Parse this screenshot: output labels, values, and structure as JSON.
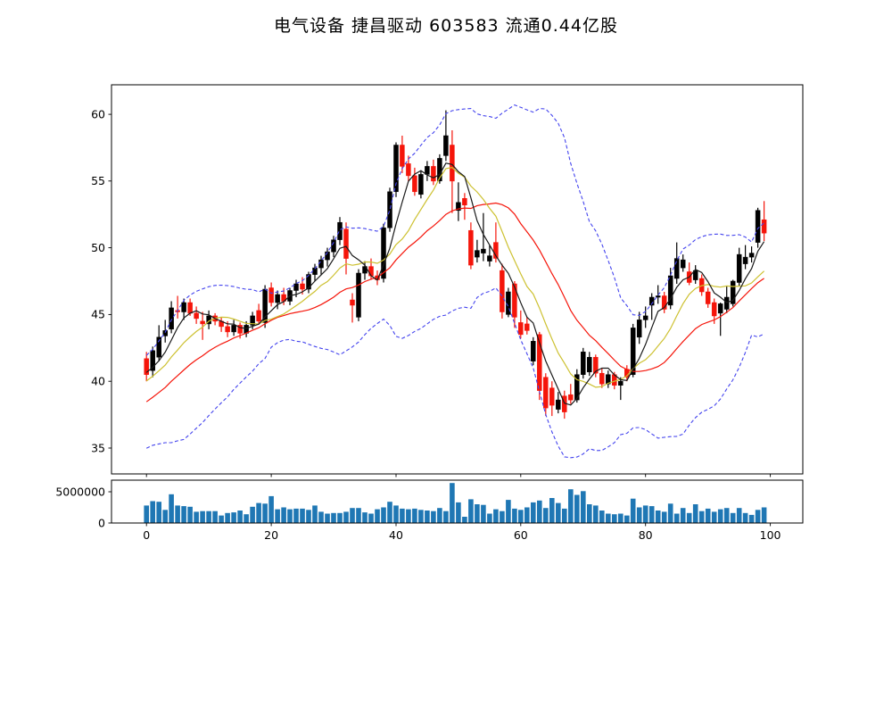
{
  "title": "电气设备 捷昌驱动 603583 流通0.44亿股",
  "chart_data": {
    "type": "candlestick",
    "title": "电气设备 捷昌驱动 603583 流通0.44亿股",
    "panels": [
      "price",
      "volume"
    ],
    "xlim": [
      -5.6,
      105.2
    ],
    "main_ylim": [
      33.06,
      62.21
    ],
    "vol_ylim": [
      0,
      6860000
    ],
    "x_ticks": [
      0,
      20,
      40,
      60,
      80,
      100
    ],
    "x_tick_labels": [
      "0",
      "20",
      "40",
      "60",
      "80",
      "100"
    ],
    "main_y_ticks": [
      35,
      40,
      45,
      50,
      55,
      60
    ],
    "main_y_tick_labels": [
      "35",
      "40",
      "45",
      "50",
      "55",
      "60"
    ],
    "vol_y_ticks": [
      0,
      5000000
    ],
    "vol_y_tick_labels": [
      "0",
      "5000000"
    ],
    "grid": false,
    "legend": false,
    "colors": {
      "up_candle": "#000000",
      "down_candle": "#f5150a",
      "volume_bar": "#1f77b4",
      "ma5_line": "#1a1a1a",
      "ma10_line": "#cdc131",
      "ma20_line": "#f5150a",
      "bollinger_band": "#4444ee",
      "axis": "#000000",
      "background": "#ffffff"
    },
    "indicators": {
      "ma_periods": [
        5,
        10,
        20
      ],
      "bollinger": {
        "period": 20,
        "mult": 2
      },
      "seed_closes_prehistory": [
        35.6,
        36.0,
        36.4,
        36.2,
        36.8,
        37.3,
        37.0,
        37.6,
        38.2,
        38.0,
        38.7,
        39.2,
        39.6,
        39.4,
        40.0,
        40.4,
        40.8,
        40.6,
        41.0
      ]
    },
    "ohlc": [
      [
        41.7,
        42.2,
        40.0,
        40.5
      ],
      [
        40.8,
        42.6,
        40.3,
        42.3
      ],
      [
        41.8,
        44.2,
        41.5,
        43.3
      ],
      [
        43.4,
        44.6,
        42.9,
        43.8
      ],
      [
        43.9,
        46.0,
        43.6,
        45.5
      ],
      [
        45.3,
        46.4,
        44.7,
        45.2
      ],
      [
        45.2,
        46.2,
        44.6,
        45.9
      ],
      [
        45.9,
        46.2,
        44.9,
        45.1
      ],
      [
        45.1,
        45.6,
        44.3,
        44.7
      ],
      [
        44.5,
        45.2,
        43.1,
        44.3
      ],
      [
        44.3,
        45.3,
        43.9,
        44.9
      ],
      [
        44.9,
        45.1,
        44.2,
        44.5
      ],
      [
        44.5,
        44.8,
        43.7,
        44.1
      ],
      [
        44.1,
        44.5,
        43.3,
        43.7
      ],
      [
        43.7,
        44.6,
        43.4,
        44.2
      ],
      [
        44.2,
        44.4,
        43.2,
        43.6
      ],
      [
        43.6,
        44.5,
        43.3,
        44.2
      ],
      [
        44.2,
        45.2,
        43.9,
        44.9
      ],
      [
        45.3,
        45.8,
        44.3,
        44.5
      ],
      [
        44.4,
        47.2,
        44.0,
        46.9
      ],
      [
        47.0,
        47.4,
        45.6,
        45.9
      ],
      [
        45.9,
        46.8,
        45.4,
        46.5
      ],
      [
        46.5,
        47.0,
        45.7,
        46.0
      ],
      [
        46.0,
        47.0,
        45.7,
        46.8
      ],
      [
        46.8,
        47.6,
        46.3,
        47.3
      ],
      [
        47.3,
        47.8,
        46.5,
        46.9
      ],
      [
        46.9,
        48.2,
        46.6,
        48.0
      ],
      [
        48.0,
        48.8,
        47.5,
        48.5
      ],
      [
        48.5,
        49.4,
        48.0,
        49.1
      ],
      [
        49.1,
        50.0,
        48.6,
        49.7
      ],
      [
        49.7,
        50.9,
        49.3,
        50.6
      ],
      [
        50.6,
        52.3,
        50.2,
        51.9
      ],
      [
        51.4,
        51.9,
        48.0,
        49.2
      ],
      [
        46.1,
        46.6,
        44.4,
        45.7
      ],
      [
        44.8,
        48.4,
        44.5,
        48.1
      ],
      [
        48.1,
        49.0,
        47.6,
        48.6
      ],
      [
        48.6,
        49.2,
        47.6,
        47.9
      ],
      [
        47.9,
        48.3,
        47.2,
        47.6
      ],
      [
        47.7,
        51.8,
        47.4,
        51.5
      ],
      [
        51.5,
        54.5,
        51.2,
        54.2
      ],
      [
        54.2,
        57.9,
        53.8,
        57.7
      ],
      [
        57.7,
        58.4,
        55.6,
        56.1
      ],
      [
        56.3,
        56.9,
        55.0,
        55.4
      ],
      [
        55.4,
        56.0,
        53.9,
        54.2
      ],
      [
        54.0,
        55.8,
        53.7,
        55.5
      ],
      [
        55.5,
        56.5,
        55.0,
        56.1
      ],
      [
        56.1,
        56.6,
        54.7,
        55.0
      ],
      [
        55.0,
        57.0,
        54.8,
        56.7
      ],
      [
        56.9,
        60.3,
        56.5,
        58.4
      ],
      [
        57.7,
        58.8,
        52.6,
        55.0
      ],
      [
        52.8,
        54.9,
        52.0,
        53.4
      ],
      [
        53.7,
        54.1,
        52.1,
        53.2
      ],
      [
        51.3,
        51.9,
        48.4,
        48.7
      ],
      [
        49.3,
        50.6,
        48.9,
        49.8
      ],
      [
        49.6,
        52.6,
        49.0,
        49.9
      ],
      [
        49.0,
        50.2,
        48.6,
        49.4
      ],
      [
        50.4,
        51.9,
        48.9,
        49.2
      ],
      [
        48.3,
        48.8,
        44.7,
        45.2
      ],
      [
        45.0,
        47.0,
        44.8,
        46.7
      ],
      [
        47.3,
        47.5,
        44.0,
        44.8
      ],
      [
        44.4,
        45.3,
        43.2,
        43.5
      ],
      [
        44.3,
        44.8,
        43.5,
        43.8
      ],
      [
        41.5,
        43.3,
        41.2,
        43.0
      ],
      [
        43.5,
        43.7,
        38.6,
        39.3
      ],
      [
        40.3,
        40.6,
        37.4,
        38.0
      ],
      [
        39.5,
        40.0,
        37.4,
        38.2
      ],
      [
        37.9,
        39.2,
        37.6,
        38.6
      ],
      [
        38.9,
        39.3,
        37.2,
        37.7
      ],
      [
        39.0,
        39.8,
        38.3,
        38.6
      ],
      [
        38.6,
        40.9,
        38.4,
        40.5
      ],
      [
        40.5,
        42.5,
        40.2,
        42.2
      ],
      [
        40.7,
        42.2,
        40.4,
        41.8
      ],
      [
        41.8,
        42.0,
        40.3,
        40.6
      ],
      [
        40.6,
        41.0,
        39.5,
        39.8
      ],
      [
        39.8,
        40.8,
        39.5,
        40.5
      ],
      [
        40.5,
        40.7,
        39.4,
        39.7
      ],
      [
        39.7,
        40.3,
        38.6,
        40.0
      ],
      [
        40.9,
        41.2,
        40.0,
        40.3
      ],
      [
        40.5,
        44.3,
        40.3,
        44.0
      ],
      [
        43.3,
        45.2,
        42.8,
        44.6
      ],
      [
        44.6,
        45.6,
        44.0,
        44.9
      ],
      [
        45.7,
        46.6,
        44.6,
        46.3
      ],
      [
        46.3,
        47.2,
        45.8,
        46.4
      ],
      [
        46.4,
        46.7,
        45.1,
        45.4
      ],
      [
        45.7,
        48.5,
        45.4,
        47.9
      ],
      [
        47.7,
        50.4,
        47.3,
        49.2
      ],
      [
        48.5,
        49.5,
        48.2,
        49.1
      ],
      [
        48.2,
        48.9,
        47.2,
        47.4
      ],
      [
        47.6,
        48.7,
        47.3,
        48.3
      ],
      [
        47.7,
        48.0,
        46.4,
        46.7
      ],
      [
        46.7,
        47.0,
        45.5,
        45.8
      ],
      [
        45.9,
        46.2,
        44.3,
        44.9
      ],
      [
        45.1,
        45.9,
        43.4,
        45.8
      ],
      [
        45.4,
        47.1,
        45.1,
        46.3
      ],
      [
        45.8,
        47.6,
        45.6,
        47.5
      ],
      [
        47.4,
        50.0,
        47.1,
        49.5
      ],
      [
        48.8,
        50.2,
        48.4,
        49.3
      ],
      [
        49.3,
        50.1,
        48.9,
        49.6
      ],
      [
        50.4,
        53.0,
        50.0,
        52.8
      ],
      [
        52.1,
        53.5,
        50.5,
        51.1
      ]
    ],
    "volumes_millions": [
      2.8,
      3.5,
      3.4,
      2.1,
      4.6,
      2.8,
      2.7,
      2.6,
      1.8,
      1.9,
      1.9,
      1.9,
      1.2,
      1.6,
      1.7,
      2.0,
      1.4,
      2.6,
      3.2,
      3.1,
      4.3,
      2.2,
      2.5,
      2.2,
      2.3,
      2.3,
      2.1,
      2.8,
      1.8,
      1.5,
      1.6,
      1.6,
      1.8,
      2.4,
      2.4,
      1.7,
      1.5,
      2.2,
      2.5,
      3.4,
      2.8,
      2.3,
      2.2,
      2.3,
      2.1,
      2.0,
      1.9,
      2.4,
      1.9,
      6.4,
      3.3,
      1.0,
      3.8,
      3.0,
      2.9,
      1.5,
      2.2,
      1.9,
      3.7,
      2.3,
      2.1,
      2.5,
      3.3,
      3.6,
      2.4,
      4.0,
      3.2,
      2.3,
      5.4,
      4.5,
      5.1,
      3.0,
      2.8,
      2.0,
      1.5,
      1.4,
      1.5,
      1.2,
      3.9,
      2.5,
      2.8,
      2.7,
      2.0,
      1.8,
      3.1,
      1.5,
      2.4,
      1.6,
      3.0,
      1.9,
      2.3,
      1.8,
      2.2,
      2.4,
      1.6,
      2.4,
      1.6,
      1.3,
      2.1,
      2.5
    ]
  }
}
